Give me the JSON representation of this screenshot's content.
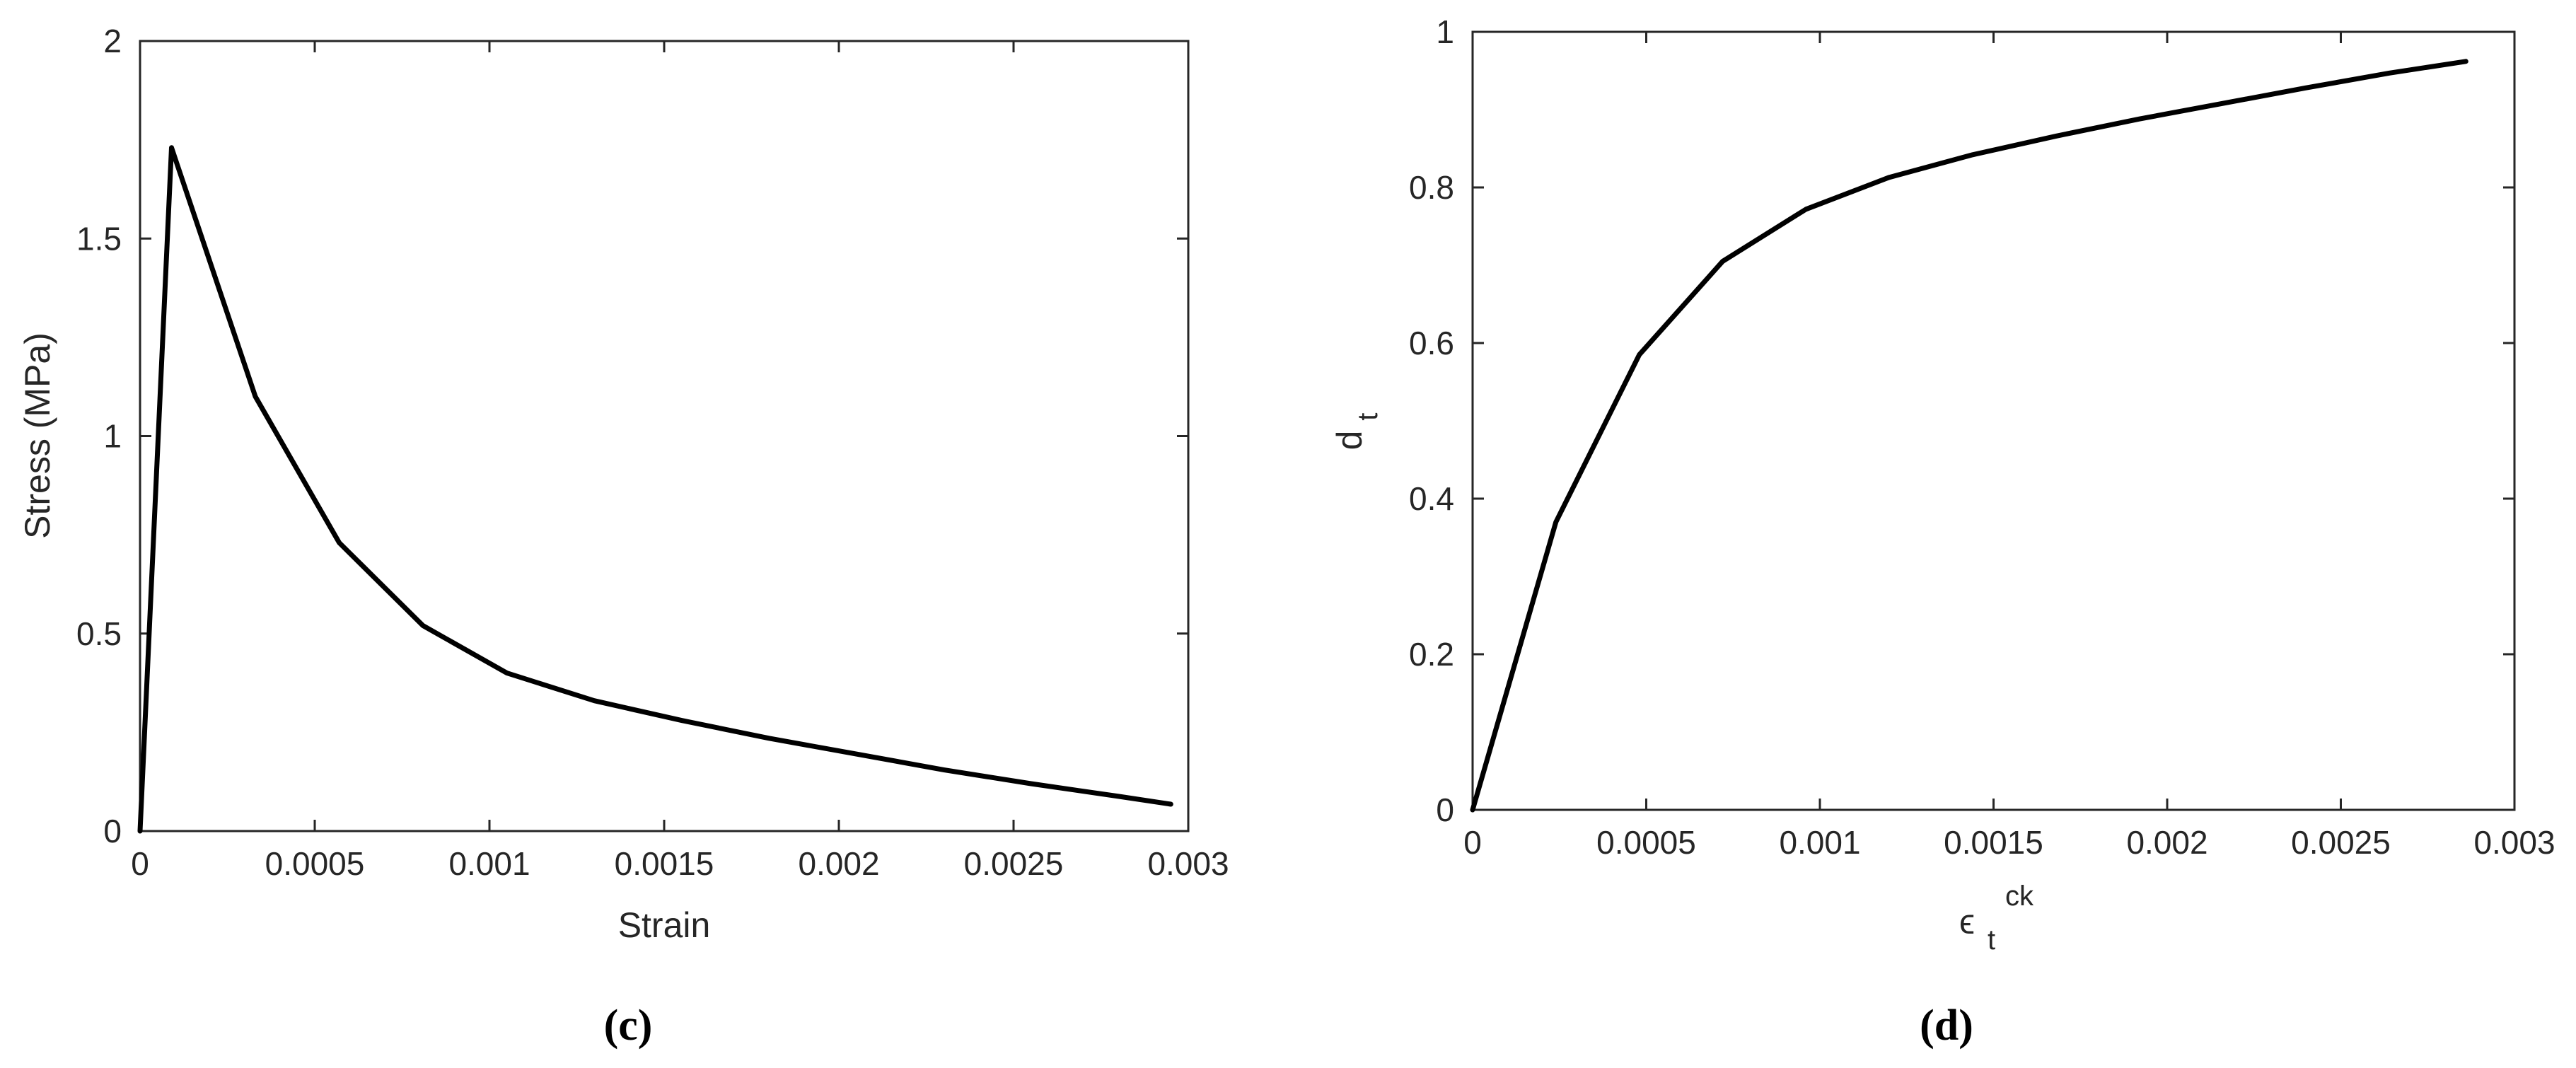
{
  "chart_data": [
    {
      "type": "line",
      "panel_label": "(c)",
      "title": "",
      "xlabel": "Strain",
      "ylabel": "Stress (MPa)",
      "xlim": [
        0,
        0.003
      ],
      "ylim": [
        0,
        2
      ],
      "xticks": [
        "0",
        "0.0005",
        "0.001",
        "0.0015",
        "0.002",
        "0.0025",
        "0.003"
      ],
      "xtick_values": [
        0,
        0.0005,
        0.001,
        0.0015,
        0.002,
        0.0025,
        0.003
      ],
      "yticks": [
        "0",
        "0.5",
        "1",
        "1.5",
        "2"
      ],
      "ytick_values": [
        0,
        0.5,
        1,
        1.5,
        2
      ],
      "grid": false,
      "series": [
        {
          "color": "#000000",
          "x": [
            0,
            9e-05,
            0.00033,
            0.00057,
            0.00081,
            0.00105,
            0.0013,
            0.00155,
            0.0018,
            0.00205,
            0.0023,
            0.00255,
            0.0028,
            0.00295
          ],
          "y": [
            0,
            1.73,
            1.1,
            0.73,
            0.52,
            0.4,
            0.33,
            0.28,
            0.235,
            0.195,
            0.155,
            0.12,
            0.088,
            0.068
          ]
        }
      ]
    },
    {
      "type": "line",
      "panel_label": "(d)",
      "title": "",
      "xlabel_main": "ϵ",
      "xlabel_sub": "t",
      "xlabel_sup": "ck",
      "ylabel_main": "d",
      "ylabel_sub": "t",
      "xlim": [
        0,
        0.003
      ],
      "ylim": [
        0,
        1
      ],
      "xticks": [
        "0",
        "0.0005",
        "0.001",
        "0.0015",
        "0.002",
        "0.0025",
        "0.003"
      ],
      "xtick_values": [
        0,
        0.0005,
        0.001,
        0.0015,
        0.002,
        0.0025,
        0.003
      ],
      "yticks": [
        "0",
        "0.2",
        "0.4",
        "0.6",
        "0.8",
        "1"
      ],
      "ytick_values": [
        0,
        0.2,
        0.4,
        0.6,
        0.8,
        1
      ],
      "grid": false,
      "series": [
        {
          "color": "#000000",
          "x": [
            0,
            0.00024,
            0.00048,
            0.00072,
            0.00096,
            0.0012,
            0.00144,
            0.00168,
            0.00192,
            0.00216,
            0.0024,
            0.00264,
            0.00286
          ],
          "y": [
            0,
            0.37,
            0.585,
            0.705,
            0.772,
            0.813,
            0.842,
            0.866,
            0.888,
            0.908,
            0.928,
            0.947,
            0.962
          ]
        }
      ]
    }
  ]
}
